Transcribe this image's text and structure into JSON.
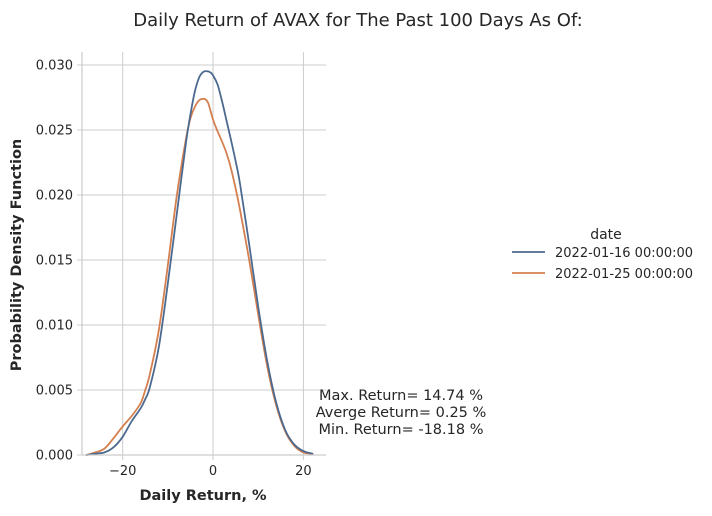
{
  "chart_data": {
    "type": "line",
    "title": "Daily Return of AVAX for The Past 100 Days As Of:",
    "xlabel": "Daily Return, %",
    "ylabel": "Probability Density Function",
    "xlim": [
      -29,
      25
    ],
    "ylim": [
      0,
      0.031
    ],
    "x_ticks": [
      -20,
      0,
      20
    ],
    "x_tick_labels": [
      "−20",
      "0",
      "20"
    ],
    "y_ticks": [
      0.0,
      0.005,
      0.01,
      0.015,
      0.02,
      0.025,
      0.03
    ],
    "y_tick_labels": [
      "0.000",
      "0.005",
      "0.010",
      "0.015",
      "0.020",
      "0.025",
      "0.030"
    ],
    "grid": true,
    "legend": {
      "title": "date",
      "placement": "right"
    },
    "series": [
      {
        "name": "2022-01-16 00:00:00",
        "color": "#4c6a8f",
        "x": [
          -28.0,
          -26.0,
          -24.0,
          -22.0,
          -20.0,
          -18.0,
          -16.0,
          -15.0,
          -14.0,
          -12.0,
          -10.0,
          -8.0,
          -6.0,
          -5.0,
          -4.0,
          -3.0,
          -2.0,
          -1.0,
          -0.5,
          0.0,
          1.0,
          2.0,
          3.0,
          4.0,
          5.0,
          6.0,
          8.0,
          10.0,
          12.0,
          14.0,
          16.0,
          18.0,
          20.0,
          22.0
        ],
        "y": [
          0.0,
          0.0001,
          0.0002,
          0.0006,
          0.0014,
          0.0026,
          0.0036,
          0.0043,
          0.0052,
          0.0083,
          0.0132,
          0.0186,
          0.024,
          0.0262,
          0.028,
          0.0291,
          0.0295,
          0.0295,
          0.0294,
          0.0292,
          0.0285,
          0.0272,
          0.0257,
          0.0242,
          0.0226,
          0.0208,
          0.0162,
          0.0114,
          0.0072,
          0.004,
          0.0019,
          0.0008,
          0.0003,
          0.0001
        ]
      },
      {
        "name": "2022-01-25 00:00:00",
        "color": "#d47f4f",
        "x": [
          -28.0,
          -26.0,
          -24.0,
          -22.0,
          -20.0,
          -18.0,
          -16.0,
          -15.0,
          -14.0,
          -12.0,
          -10.0,
          -8.0,
          -6.0,
          -5.0,
          -4.0,
          -3.0,
          -2.0,
          -1.5,
          -1.0,
          0.0,
          1.0,
          2.0,
          3.0,
          4.0,
          5.0,
          6.0,
          8.0,
          10.0,
          12.0,
          14.0,
          16.0,
          18.0,
          20.0,
          22.0
        ],
        "y": [
          0.0,
          0.0002,
          0.0005,
          0.0013,
          0.0022,
          0.003,
          0.004,
          0.005,
          0.0062,
          0.0096,
          0.0146,
          0.02,
          0.0243,
          0.0259,
          0.0268,
          0.0273,
          0.0274,
          0.0273,
          0.027,
          0.0258,
          0.0249,
          0.0241,
          0.0232,
          0.022,
          0.0205,
          0.0188,
          0.015,
          0.0108,
          0.0068,
          0.0038,
          0.0018,
          0.0007,
          0.0002,
          0.0001
        ]
      }
    ],
    "annotation": {
      "lines": [
        "Max. Return= 14.74 %",
        "Averge Return= 0.25 %",
        "Min. Return= -18.18 %"
      ]
    }
  }
}
